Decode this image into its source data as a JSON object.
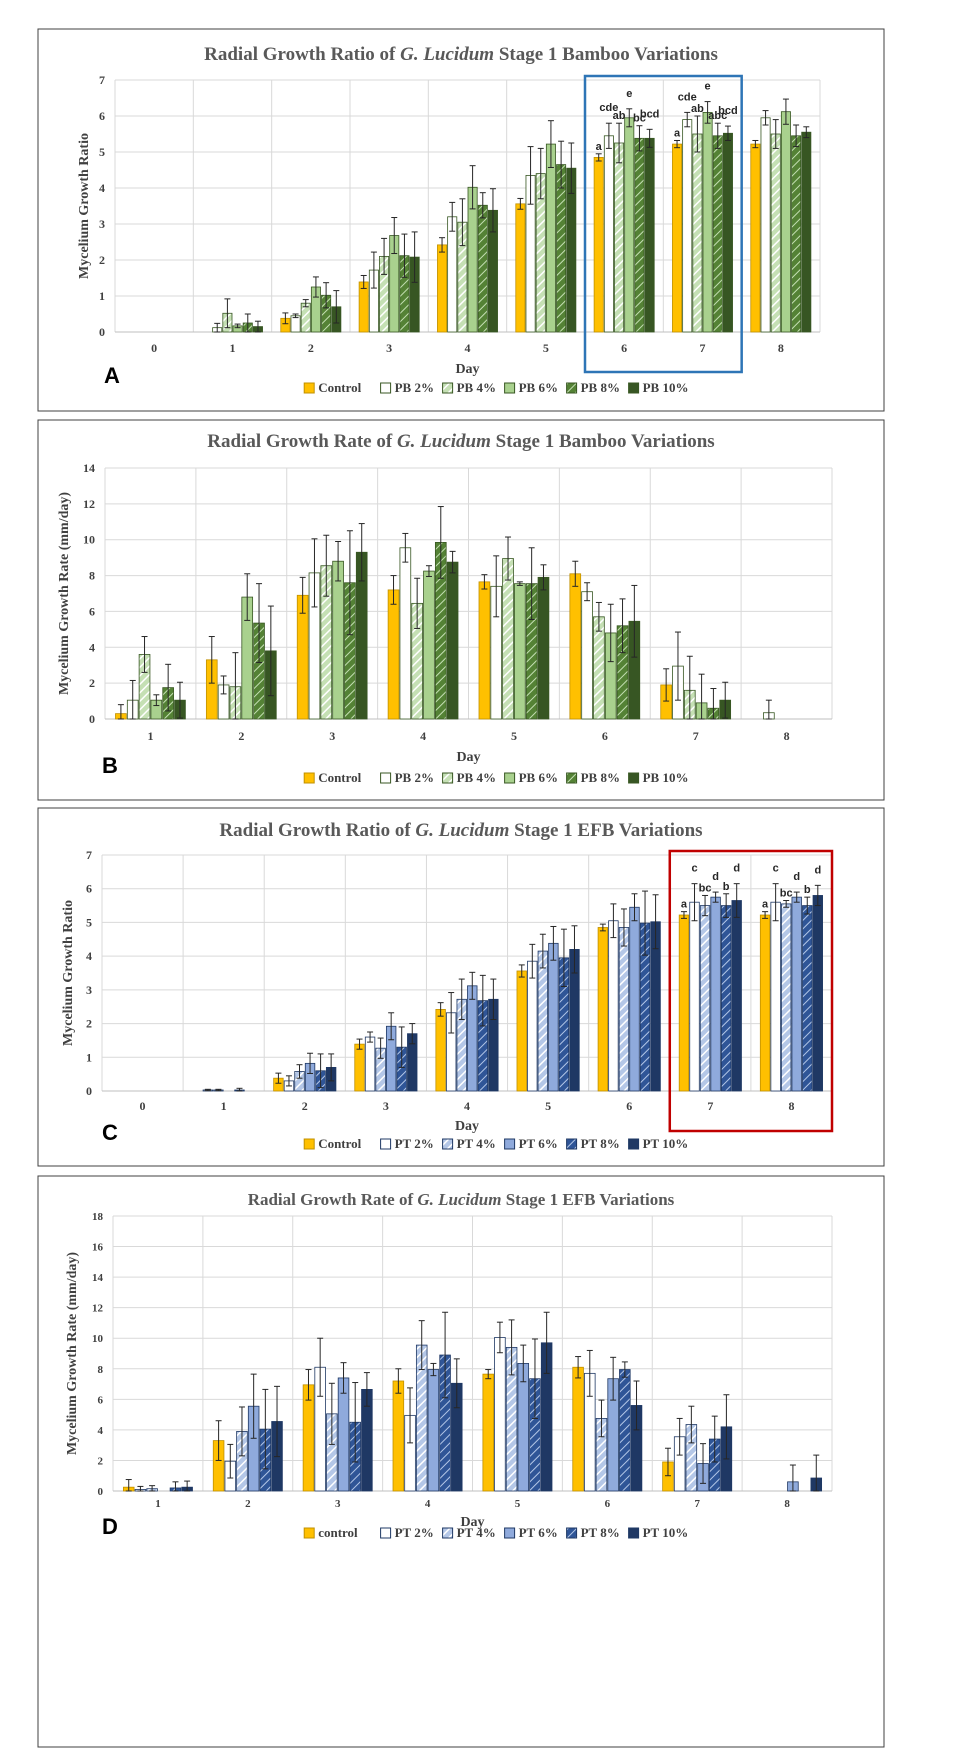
{
  "chart_data": [
    {
      "panel": "A",
      "type": "bar",
      "title_pre": "Radial Growth Ratio of ",
      "title_it": "G. Lucidum",
      "title_post": " Stage 1 Bamboo Variations",
      "xlabel": "Day",
      "ylabel": "Mycelium Growth Ratio",
      "ylim": [
        0,
        7
      ],
      "ytick_step": 1,
      "categories": [
        "0",
        "1",
        "2",
        "3",
        "4",
        "5",
        "6",
        "7",
        "8"
      ],
      "series": [
        {
          "name": "Control",
          "values": [
            0,
            0,
            0.38,
            1.39,
            2.42,
            3.56,
            4.85,
            5.22,
            5.22
          ],
          "errors": [
            0,
            0,
            0.15,
            0.18,
            0.2,
            0.15,
            0.1,
            0.1,
            0.1
          ]
        },
        {
          "name": "PB 2%",
          "values": [
            0,
            0.12,
            0.45,
            1.72,
            3.2,
            4.35,
            5.45,
            5.9,
            5.95
          ],
          "errors": [
            0,
            0.12,
            0.05,
            0.5,
            0.4,
            0.8,
            0.35,
            0.2,
            0.2
          ]
        },
        {
          "name": "PB 4%",
          "values": [
            0,
            0.52,
            0.8,
            2.1,
            3.05,
            4.4,
            5.25,
            5.5,
            5.5
          ],
          "errors": [
            0,
            0.4,
            0.1,
            0.5,
            0.65,
            0.7,
            0.55,
            0.5,
            0.4
          ]
        },
        {
          "name": "PB 6%",
          "values": [
            0,
            0.17,
            1.25,
            2.68,
            4.02,
            5.22,
            5.95,
            6.1,
            6.12
          ],
          "errors": [
            0,
            0.05,
            0.28,
            0.5,
            0.6,
            0.65,
            0.25,
            0.3,
            0.35
          ]
        },
        {
          "name": "PB 8%",
          "values": [
            0,
            0.25,
            1.02,
            2.12,
            3.52,
            4.65,
            5.38,
            5.45,
            5.45
          ],
          "errors": [
            0,
            0.25,
            0.35,
            0.6,
            0.35,
            0.65,
            0.35,
            0.35,
            0.3
          ]
        },
        {
          "name": "PB 10%",
          "values": [
            0,
            0.15,
            0.7,
            2.08,
            3.38,
            4.55,
            5.38,
            5.52,
            5.55
          ],
          "errors": [
            0,
            0.15,
            0.45,
            0.7,
            0.6,
            0.7,
            0.25,
            0.2,
            0.15
          ]
        }
      ],
      "annotations": [
        {
          "category": "6",
          "labels": [
            "a",
            "cde",
            "ab",
            "e",
            "bc",
            "bcd"
          ]
        },
        {
          "category": "7",
          "labels": [
            "a",
            "cde",
            "ab",
            "e",
            "abc",
            "bcd"
          ]
        }
      ],
      "highlight": {
        "from": "6",
        "to": "7",
        "color": "#2e75b6"
      },
      "panel_letter": "A"
    },
    {
      "panel": "B",
      "type": "bar",
      "title_pre": "Radial Growth Rate of ",
      "title_it": "G. Lucidum",
      "title_post": " Stage 1 Bamboo Variations",
      "xlabel": "Day",
      "ylabel": "Mycelium Growth Rate (mm/day)",
      "ylim": [
        0,
        14
      ],
      "ytick_step": 2,
      "categories": [
        "1",
        "2",
        "3",
        "4",
        "5",
        "6",
        "7",
        "8"
      ],
      "series": [
        {
          "name": "Control",
          "values": [
            0.3,
            3.3,
            6.9,
            7.2,
            7.65,
            8.1,
            1.9,
            0
          ],
          "errors": [
            0.5,
            1.3,
            1.0,
            0.8,
            0.4,
            0.7,
            0.9,
            0
          ]
        },
        {
          "name": "PB 2%",
          "values": [
            1.05,
            1.9,
            8.15,
            9.55,
            7.4,
            7.1,
            2.95,
            0.35
          ],
          "errors": [
            1.1,
            0.5,
            1.9,
            0.8,
            1.7,
            0.5,
            1.9,
            0.7
          ]
        },
        {
          "name": "PB 4%",
          "values": [
            3.6,
            1.8,
            8.55,
            6.45,
            8.95,
            5.7,
            1.6,
            0
          ],
          "errors": [
            1.0,
            1.9,
            1.7,
            1.4,
            1.2,
            0.8,
            1.9,
            0
          ]
        },
        {
          "name": "PB 6%",
          "values": [
            1.05,
            6.8,
            8.8,
            8.25,
            7.55,
            4.8,
            0.9,
            0
          ],
          "errors": [
            0.3,
            1.3,
            1.1,
            0.3,
            0.1,
            1.6,
            1.6,
            0
          ]
        },
        {
          "name": "PB 8%",
          "values": [
            1.75,
            5.35,
            7.6,
            9.85,
            7.55,
            5.2,
            0.6,
            0
          ],
          "errors": [
            1.3,
            2.2,
            2.9,
            2.0,
            2.0,
            1.5,
            1.1,
            0
          ]
        },
        {
          "name": "PB 10%",
          "values": [
            1.05,
            3.8,
            9.3,
            8.75,
            7.9,
            5.45,
            1.05,
            0
          ],
          "errors": [
            1.0,
            2.5,
            1.6,
            0.6,
            0.7,
            2.0,
            1.0,
            0
          ]
        }
      ],
      "annotations": [],
      "panel_letter": "B"
    },
    {
      "panel": "C",
      "type": "bar",
      "title_pre": "Radial Growth Ratio of ",
      "title_it": "G. Lucidum",
      "title_post": " Stage 1 EFB Variations",
      "xlabel": "Day",
      "ylabel": "Mycelium Growth Ratio",
      "ylim": [
        0,
        7
      ],
      "ytick_step": 1,
      "categories": [
        "0",
        "1",
        "2",
        "3",
        "4",
        "5",
        "6",
        "7",
        "8"
      ],
      "series": [
        {
          "name": "Control",
          "values": [
            0,
            0,
            0.38,
            1.39,
            2.42,
            3.56,
            4.85,
            5.22,
            5.22
          ],
          "errors": [
            0,
            0,
            0.15,
            0.15,
            0.2,
            0.18,
            0.1,
            0.1,
            0.1
          ]
        },
        {
          "name": "PT 2%",
          "values": [
            0,
            0.03,
            0.3,
            1.6,
            2.32,
            3.85,
            5.05,
            5.6,
            5.6
          ],
          "errors": [
            0,
            0.02,
            0.15,
            0.15,
            0.6,
            0.5,
            0.5,
            0.55,
            0.55
          ]
        },
        {
          "name": "PT 4%",
          "values": [
            0,
            0.03,
            0.58,
            1.27,
            2.72,
            4.15,
            4.85,
            5.5,
            5.55
          ],
          "errors": [
            0,
            0.02,
            0.2,
            0.3,
            0.6,
            0.5,
            0.55,
            0.3,
            0.1
          ]
        },
        {
          "name": "PT 6%",
          "values": [
            0,
            0,
            0.82,
            1.92,
            3.12,
            4.38,
            5.45,
            5.75,
            5.75
          ],
          "errors": [
            0,
            0,
            0.3,
            0.4,
            0.4,
            0.5,
            0.4,
            0.15,
            0.15
          ]
        },
        {
          "name": "PT 8%",
          "values": [
            0,
            0.03,
            0.6,
            1.3,
            2.68,
            3.95,
            4.98,
            5.5,
            5.5
          ],
          "errors": [
            0,
            0.05,
            0.5,
            0.6,
            0.75,
            0.85,
            0.95,
            0.35,
            0.25
          ]
        },
        {
          "name": "PT 10%",
          "values": [
            0,
            0,
            0.7,
            1.7,
            2.72,
            4.2,
            5.02,
            5.65,
            5.8
          ],
          "errors": [
            0,
            0,
            0.4,
            0.3,
            0.6,
            0.7,
            0.8,
            0.5,
            0.3
          ]
        }
      ],
      "annotations": [
        {
          "category": "7",
          "labels": [
            "a",
            "c",
            "bc",
            "d",
            "b",
            "d"
          ]
        },
        {
          "category": "8",
          "labels": [
            "a",
            "c",
            "bc",
            "d",
            "b",
            "d"
          ]
        }
      ],
      "highlight": {
        "from": "7",
        "to": "8",
        "color": "#c00000"
      },
      "panel_letter": "C"
    },
    {
      "panel": "D",
      "type": "bar",
      "title_pre": "Radial Growth Rate of ",
      "title_it": "G. Lucidum",
      "title_post": " Stage 1 EFB Variations",
      "xlabel": "Day",
      "ylabel": "Mycelium Growth Rate (mm/day)",
      "ylim": [
        0,
        18
      ],
      "ytick_step": 2,
      "categories": [
        "1",
        "2",
        "3",
        "4",
        "5",
        "6",
        "7",
        "8"
      ],
      "series": [
        {
          "name": "control",
          "values": [
            0.25,
            3.3,
            6.95,
            7.2,
            7.65,
            8.1,
            1.9,
            0
          ],
          "errors": [
            0.5,
            1.3,
            1.0,
            0.8,
            0.3,
            0.7,
            0.9,
            0
          ]
        },
        {
          "name": "PT 2%",
          "values": [
            0.1,
            1.95,
            8.1,
            4.95,
            10.05,
            7.7,
            3.55,
            0
          ],
          "errors": [
            0.2,
            1.1,
            1.9,
            1.8,
            1.0,
            1.5,
            1.2,
            0
          ]
        },
        {
          "name": "PT 4%",
          "values": [
            0.15,
            3.9,
            5.05,
            9.55,
            9.4,
            4.75,
            4.35,
            0
          ],
          "errors": [
            0.2,
            1.6,
            2.0,
            1.6,
            1.8,
            1.2,
            1.2,
            0
          ]
        },
        {
          "name": "PT 6%",
          "values": [
            0,
            5.55,
            7.4,
            7.95,
            8.35,
            7.35,
            1.8,
            0.6
          ],
          "errors": [
            0,
            2.1,
            1.0,
            0.4,
            1.2,
            1.4,
            1.3,
            1.1
          ]
        },
        {
          "name": "PT 8%",
          "values": [
            0.2,
            4.05,
            4.5,
            8.9,
            7.35,
            7.95,
            3.4,
            0
          ],
          "errors": [
            0.4,
            2.6,
            2.6,
            2.8,
            2.6,
            0.5,
            1.5,
            0
          ]
        },
        {
          "name": "PT 10%",
          "values": [
            0.25,
            4.55,
            6.65,
            7.05,
            9.7,
            5.6,
            4.2,
            0.85
          ],
          "errors": [
            0.4,
            2.3,
            1.1,
            1.6,
            2.0,
            1.6,
            2.1,
            1.5
          ]
        }
      ],
      "annotations": [],
      "panel_letter": "D"
    }
  ],
  "legend_colors": {
    "bamboo": [
      "#ffc000",
      "#ffffff",
      "#e2efd9",
      "#a9d18e",
      "#548235",
      "#375623"
    ],
    "efb": [
      "#ffc000",
      "#ffffff",
      "#dae3f3",
      "#8faadc",
      "#2f5597",
      "#1f3864"
    ]
  },
  "patterns": [
    "solid",
    "solid",
    "hatch",
    "solid",
    "hatch",
    "solid"
  ]
}
